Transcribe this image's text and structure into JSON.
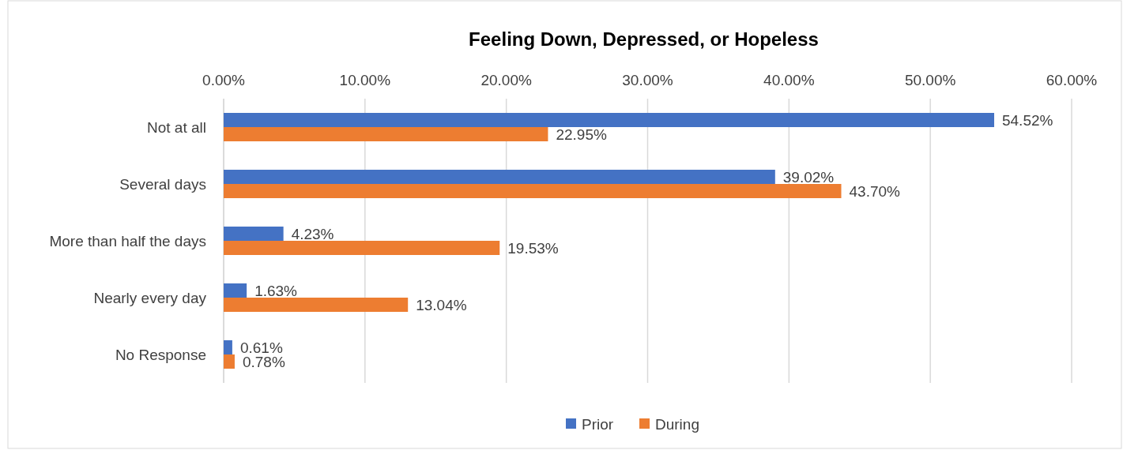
{
  "chart_data": {
    "type": "bar",
    "orientation": "horizontal",
    "title": "Feeling Down, Depressed, or Hopeless",
    "categories": [
      "Not at all",
      "Several days",
      "More than half the days",
      "Nearly every day",
      "No Response"
    ],
    "series": [
      {
        "name": "Prior",
        "color": "#4472c4",
        "values": [
          54.52,
          39.02,
          4.23,
          1.63,
          0.61
        ],
        "value_labels": [
          "54.52%",
          "39.02%",
          "4.23%",
          "1.63%",
          "0.61%"
        ]
      },
      {
        "name": "During",
        "color": "#ed7d31",
        "values": [
          22.95,
          43.7,
          19.53,
          13.04,
          0.78
        ],
        "value_labels": [
          "22.95%",
          "43.70%",
          "19.53%",
          "13.04%",
          "0.78%"
        ]
      }
    ],
    "xlim": [
      0,
      60
    ],
    "xticks": [
      {
        "value": 0,
        "label": "0.00%"
      },
      {
        "value": 10,
        "label": "10.00%"
      },
      {
        "value": 20,
        "label": "20.00%"
      },
      {
        "value": 30,
        "label": "30.00%"
      },
      {
        "value": 40,
        "label": "40.00%"
      },
      {
        "value": 50,
        "label": "50.00%"
      },
      {
        "value": 60,
        "label": "60.00%"
      }
    ],
    "grid": "x",
    "legend": "bottom"
  }
}
